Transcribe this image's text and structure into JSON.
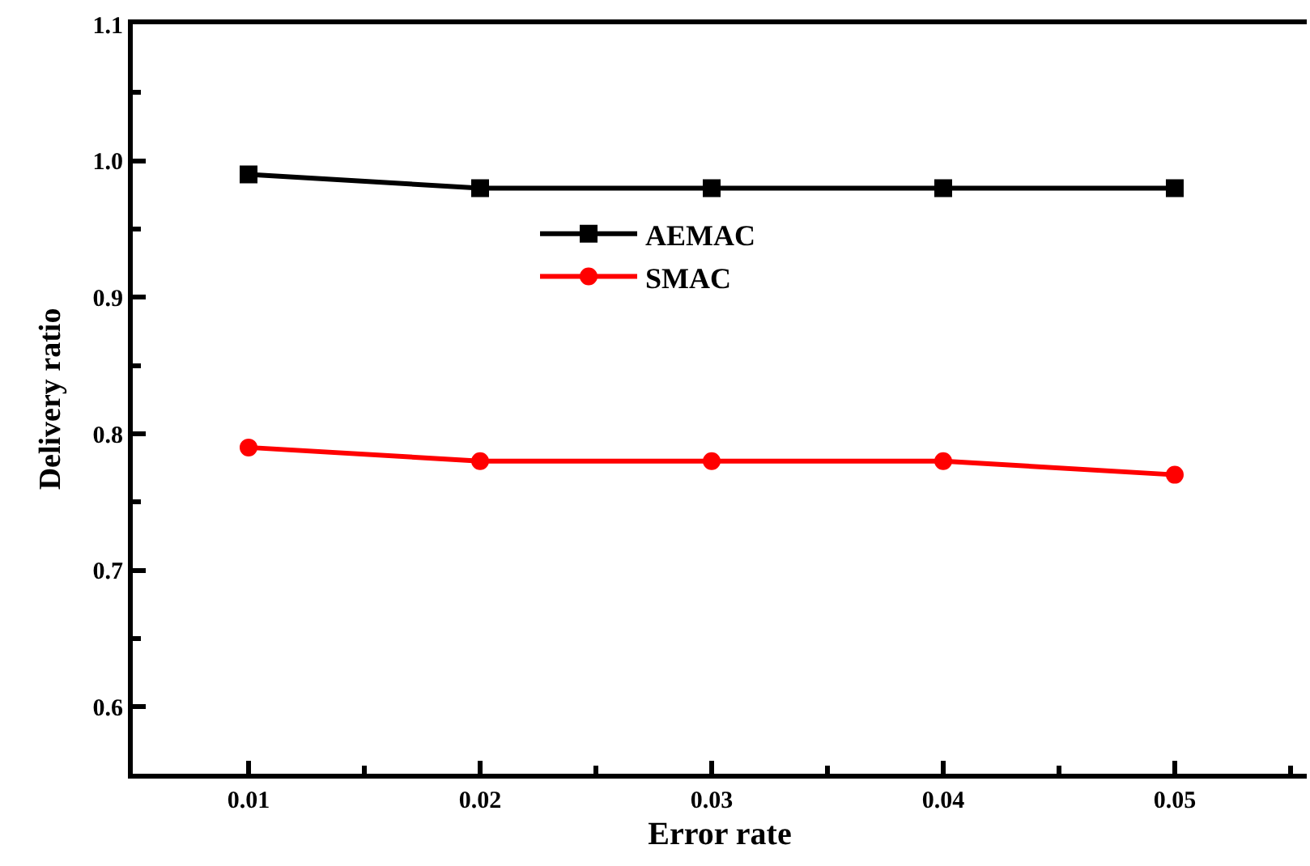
{
  "chart_data": {
    "type": "line",
    "xlabel": "Error rate",
    "ylabel": "Delivery ratio",
    "x": [
      0.01,
      0.02,
      0.03,
      0.04,
      0.05
    ],
    "series": [
      {
        "name": "AEMAC",
        "color": "#000000",
        "marker": "square",
        "values": [
          0.99,
          0.98,
          0.98,
          0.98,
          0.98
        ]
      },
      {
        "name": "SMAC",
        "color": "#ff0000",
        "marker": "circle",
        "values": [
          0.79,
          0.78,
          0.78,
          0.78,
          0.77
        ]
      }
    ],
    "xlim": [
      0.005,
      0.0557
    ],
    "ylim": [
      0.551,
      1.1
    ],
    "xticks": [
      0.01,
      0.02,
      0.03,
      0.04,
      0.05
    ],
    "yticks": [
      {
        "value": 0.6,
        "label": "0.6"
      },
      {
        "value": 0.7,
        "label": "0.7"
      },
      {
        "value": 0.8,
        "label": "0.8"
      },
      {
        "value": 0.9,
        "label": "0.9"
      },
      {
        "value": 1.0,
        "label": "1.0"
      },
      {
        "value": 1.1,
        "label": "1.1"
      }
    ],
    "legend": "top",
    "line_style": "solid"
  }
}
